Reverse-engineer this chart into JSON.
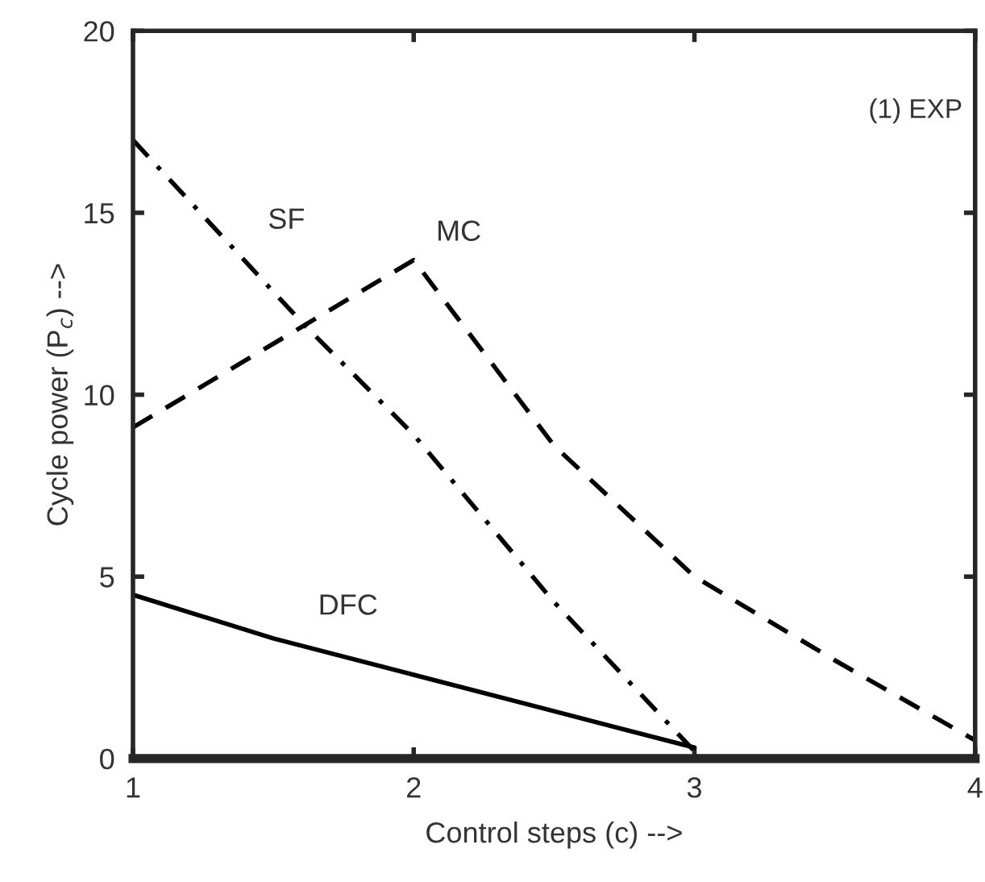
{
  "chart_data": {
    "type": "line",
    "xlabel": "Control steps (c) -->",
    "ylabel": "Cycle power (P$_{c}$) -->",
    "xlim": [
      1,
      4
    ],
    "ylim": [
      0,
      20
    ],
    "xticks": [
      1,
      2,
      3,
      4
    ],
    "yticks": [
      0,
      5,
      10,
      15,
      20
    ],
    "legend": false,
    "marker": "none",
    "series": [
      {
        "name": "SF",
        "color": "#000000",
        "line_style": "dashdot",
        "x": [
          1,
          1.6,
          2,
          2.5,
          3
        ],
        "values": [
          17,
          12.0,
          8.9,
          4.3,
          0.2
        ]
      },
      {
        "name": "MC",
        "color": "#000000",
        "line_style": "dashed",
        "x": [
          1,
          2,
          2.5,
          3,
          3.5,
          4
        ],
        "values": [
          9.1,
          13.7,
          8.6,
          5.0,
          2.7,
          0.5
        ]
      },
      {
        "name": "DFC",
        "color": "#000000",
        "line_style": "solid",
        "x": [
          1,
          1.5,
          2,
          2.5,
          3
        ],
        "values": [
          4.5,
          3.3,
          2.3,
          1.3,
          0.3
        ]
      }
    ],
    "annotations": [
      "(1) EXP"
    ]
  }
}
